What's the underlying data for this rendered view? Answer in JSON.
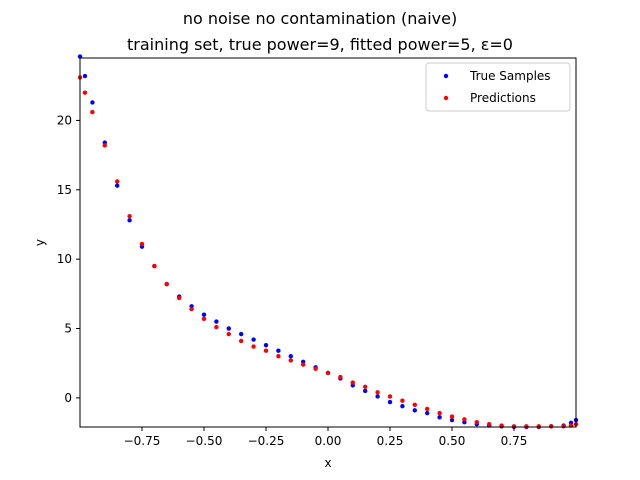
{
  "chart_data": {
    "type": "scatter",
    "title": "no noise no contamination (naive)",
    "subtitle": "training set, true power=9, fitted power=5, ε=0",
    "xlabel": "x",
    "ylabel": "y",
    "xlim": [
      -1,
      1
    ],
    "ylim": [
      -2.1,
      24.5
    ],
    "x_ticks": [
      -0.75,
      -0.5,
      -0.25,
      0.0,
      0.25,
      0.5,
      0.75
    ],
    "x_tick_labels": [
      "−0.75",
      "−0.50",
      "−0.25",
      "0.00",
      "0.25",
      "0.50",
      "0.75"
    ],
    "y_ticks": [
      0,
      5,
      10,
      15,
      20
    ],
    "y_tick_labels": [
      "0",
      "5",
      "10",
      "15",
      "20"
    ],
    "grid": false,
    "legend_position": "top-right",
    "series": [
      {
        "name": "True Samples",
        "color": "#0000ff",
        "x": [
          -1.0,
          -0.98,
          -0.95,
          -0.9,
          -0.85,
          -0.8,
          -0.75,
          -0.7,
          -0.65,
          -0.6,
          -0.55,
          -0.5,
          -0.45,
          -0.4,
          -0.35,
          -0.3,
          -0.25,
          -0.2,
          -0.15,
          -0.1,
          -0.05,
          0.0,
          0.05,
          0.1,
          0.15,
          0.2,
          0.25,
          0.3,
          0.35,
          0.4,
          0.45,
          0.5,
          0.55,
          0.6,
          0.65,
          0.7,
          0.75,
          0.8,
          0.85,
          0.9,
          0.95,
          0.98,
          1.0
        ],
        "y": [
          24.6,
          23.2,
          21.3,
          18.4,
          15.3,
          12.8,
          10.9,
          9.5,
          8.2,
          7.3,
          6.6,
          6.0,
          5.5,
          5.0,
          4.6,
          4.2,
          3.8,
          3.4,
          3.0,
          2.6,
          2.2,
          1.8,
          1.4,
          0.9,
          0.5,
          0.1,
          -0.3,
          -0.6,
          -0.9,
          -1.1,
          -1.4,
          -1.6,
          -1.75,
          -1.9,
          -2.0,
          -2.05,
          -2.1,
          -2.1,
          -2.1,
          -2.05,
          -2.0,
          -1.8,
          -1.6
        ]
      },
      {
        "name": "Predictions",
        "color": "#ff0000",
        "x": [
          -1.0,
          -0.98,
          -0.95,
          -0.9,
          -0.85,
          -0.8,
          -0.75,
          -0.7,
          -0.65,
          -0.6,
          -0.55,
          -0.5,
          -0.45,
          -0.4,
          -0.35,
          -0.3,
          -0.25,
          -0.2,
          -0.15,
          -0.1,
          -0.05,
          0.0,
          0.05,
          0.1,
          0.15,
          0.2,
          0.25,
          0.3,
          0.35,
          0.4,
          0.45,
          0.5,
          0.55,
          0.6,
          0.65,
          0.7,
          0.75,
          0.8,
          0.85,
          0.9,
          0.95,
          0.98,
          1.0
        ],
        "y": [
          23.1,
          22.0,
          20.6,
          18.2,
          15.6,
          13.1,
          11.1,
          9.5,
          8.2,
          7.2,
          6.4,
          5.7,
          5.1,
          4.6,
          4.1,
          3.7,
          3.4,
          3.0,
          2.7,
          2.4,
          2.1,
          1.8,
          1.5,
          1.1,
          0.8,
          0.4,
          0.1,
          -0.2,
          -0.5,
          -0.8,
          -1.1,
          -1.35,
          -1.55,
          -1.75,
          -1.9,
          -2.0,
          -2.05,
          -2.05,
          -2.05,
          -2.05,
          -2.05,
          -2.0,
          -1.9
        ]
      }
    ]
  }
}
